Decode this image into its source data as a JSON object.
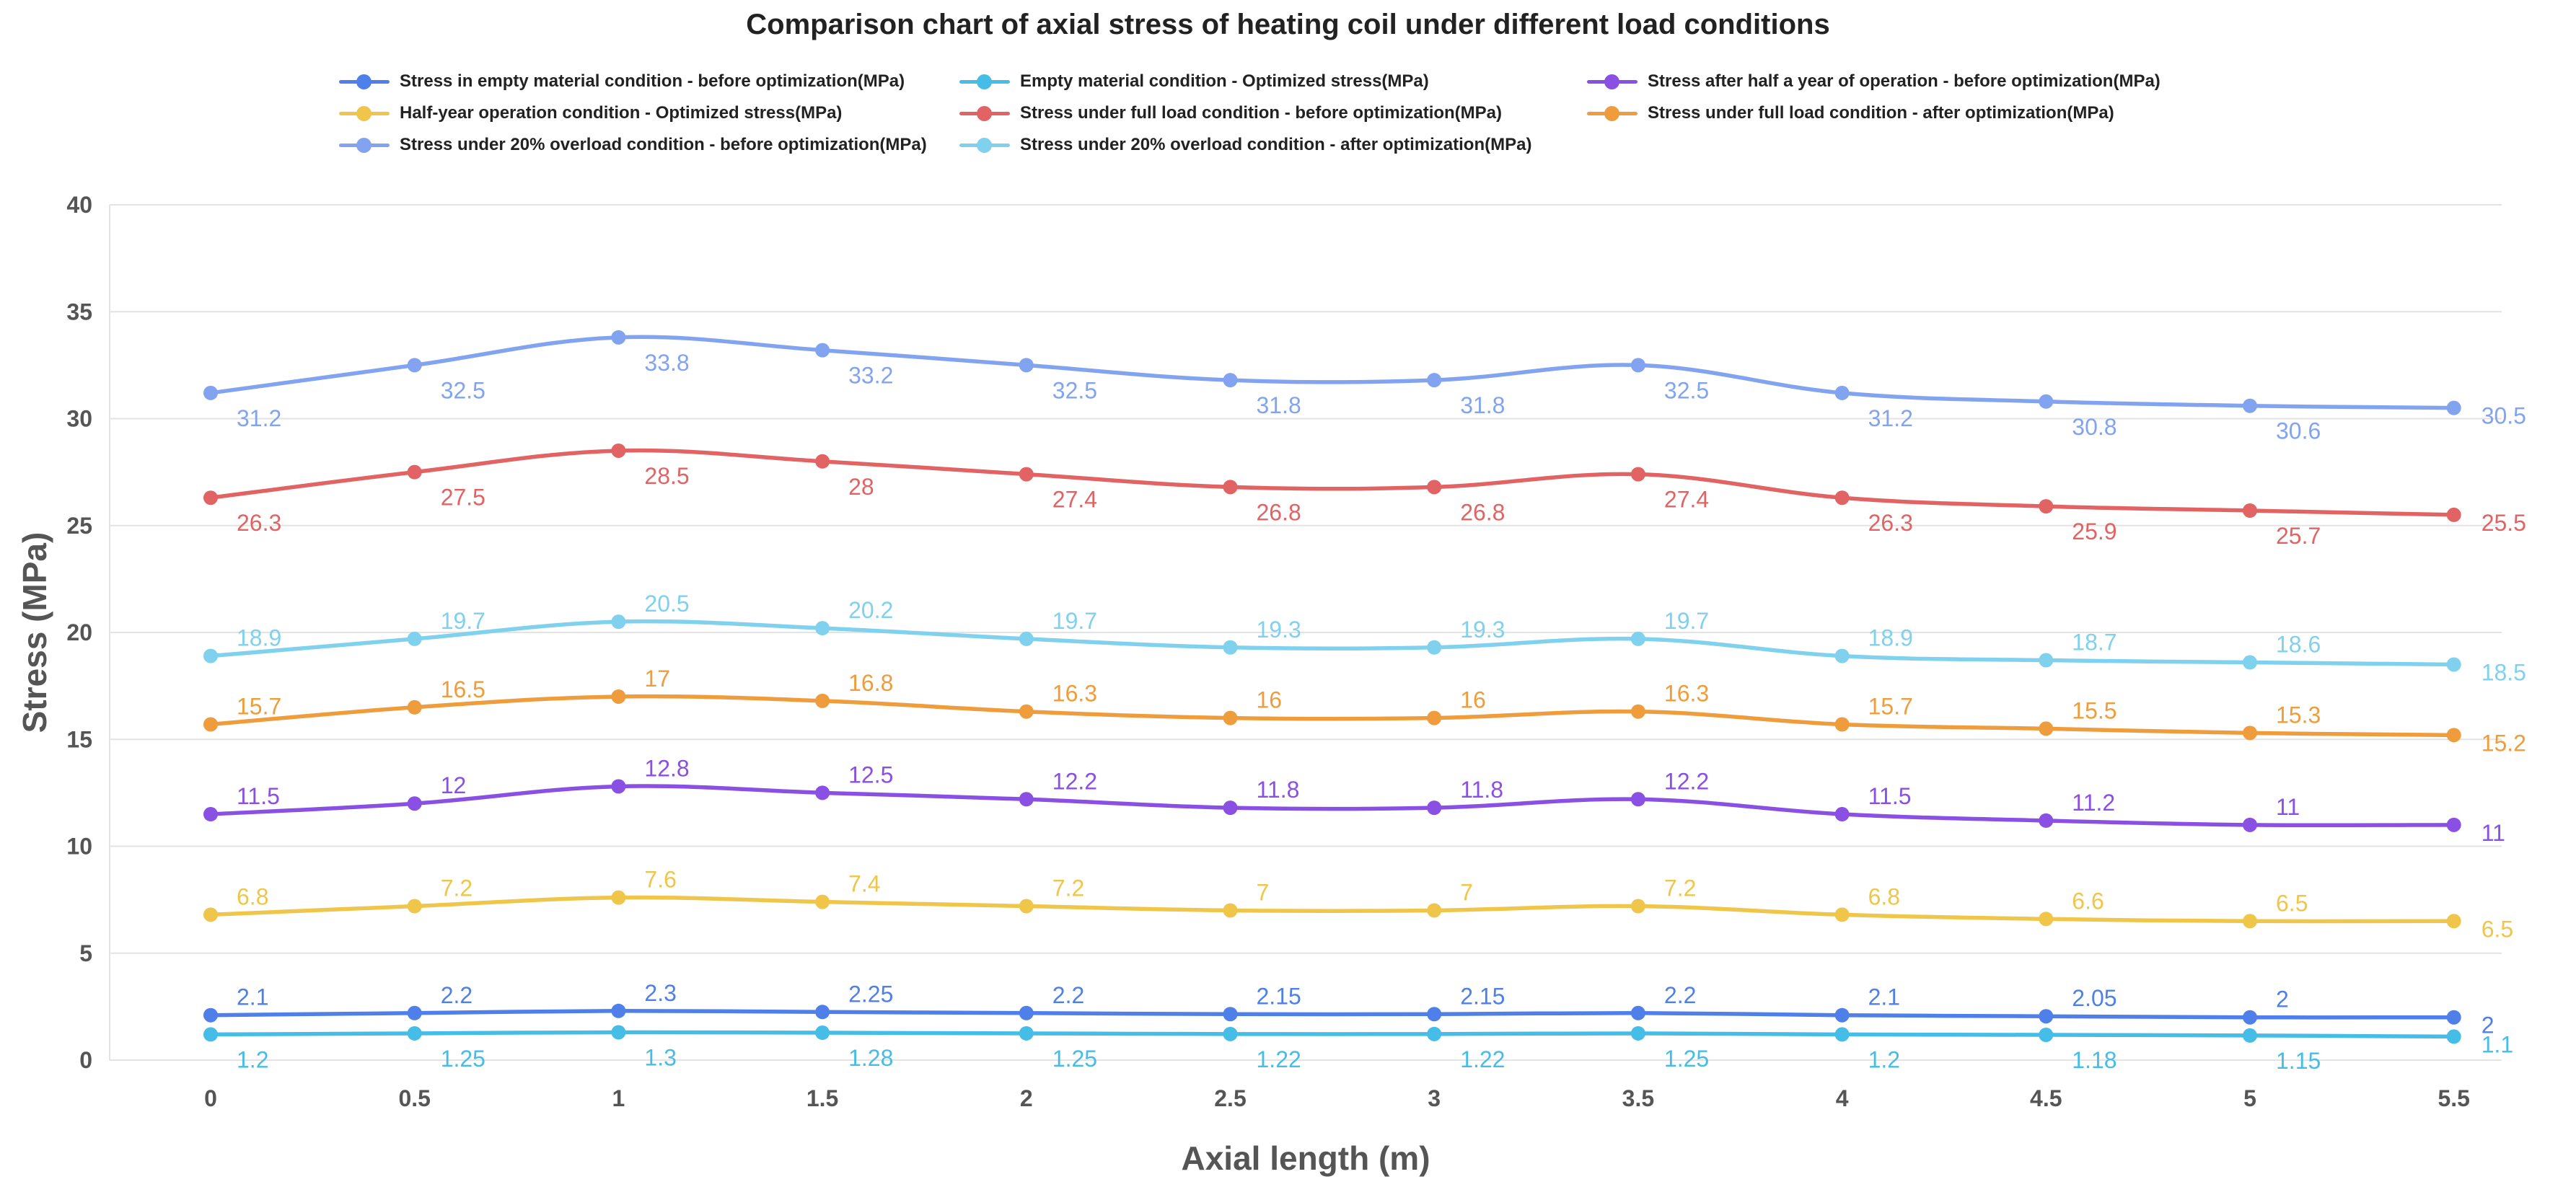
{
  "chart_data": {
    "type": "line",
    "title": "Comparison chart of axial stress of heating coil under different load conditions",
    "xlabel": "Axial length (m)",
    "ylabel": "Stress (MPa)",
    "x": [
      "0",
      "0.5",
      "1",
      "1.5",
      "2",
      "2.5",
      "3",
      "3.5",
      "4",
      "4.5",
      "5",
      "5.5"
    ],
    "y_ticks": [
      "0",
      "5",
      "10",
      "15",
      "20",
      "25",
      "30",
      "35",
      "40"
    ],
    "ylim": [
      0,
      40
    ],
    "grid": "horizontal",
    "legend_position": "top",
    "series": [
      {
        "name": "Stress in empty material condition - before optimization(MPa)",
        "color": "#4f7fe8",
        "label_pos": "above",
        "values": [
          2.1,
          2.2,
          2.3,
          2.25,
          2.2,
          2.15,
          2.15,
          2.2,
          2.1,
          2.05,
          2,
          2
        ]
      },
      {
        "name": "Empty material condition - Optimized stress(MPa)",
        "color": "#46bde6",
        "label_pos": "below",
        "values": [
          1.2,
          1.25,
          1.3,
          1.28,
          1.25,
          1.22,
          1.22,
          1.25,
          1.2,
          1.18,
          1.15,
          1.1
        ]
      },
      {
        "name": "Stress after half a year of operation - before optimization(MPa)",
        "color": "#8a4fe3",
        "label_pos": "above",
        "values": [
          11.5,
          12,
          12.8,
          12.5,
          12.2,
          11.8,
          11.8,
          12.2,
          11.5,
          11.2,
          11,
          11
        ]
      },
      {
        "name": "Half-year operation condition - Optimized stress(MPa)",
        "color": "#efc64a",
        "label_pos": "above",
        "values": [
          6.8,
          7.2,
          7.6,
          7.4,
          7.2,
          7,
          7,
          7.2,
          6.8,
          6.6,
          6.5,
          6.5
        ]
      },
      {
        "name": "Stress under full load condition - before optimization(MPa)",
        "color": "#e26363",
        "label_pos": "below",
        "values": [
          26.3,
          27.5,
          28.5,
          28,
          27.4,
          26.8,
          26.8,
          27.4,
          26.3,
          25.9,
          25.7,
          25.5
        ]
      },
      {
        "name": "Stress under full load condition - after optimization(MPa)",
        "color": "#ef9d3c",
        "label_pos": "above",
        "values": [
          15.7,
          16.5,
          17,
          16.8,
          16.3,
          16,
          16,
          16.3,
          15.7,
          15.5,
          15.3,
          15.2
        ]
      },
      {
        "name": "Stress under 20% overload condition - before optimization(MPa)",
        "color": "#82a4f0",
        "label_pos": "below",
        "values": [
          31.2,
          32.5,
          33.8,
          33.2,
          32.5,
          31.8,
          31.8,
          32.5,
          31.2,
          30.8,
          30.6,
          30.5
        ]
      },
      {
        "name": "Stress under 20% overload condition - after optimization(MPa)",
        "color": "#7fd1ee",
        "label_pos": "above",
        "values": [
          18.9,
          19.7,
          20.5,
          20.2,
          19.7,
          19.3,
          19.3,
          19.7,
          18.9,
          18.7,
          18.6,
          18.5
        ]
      }
    ]
  }
}
